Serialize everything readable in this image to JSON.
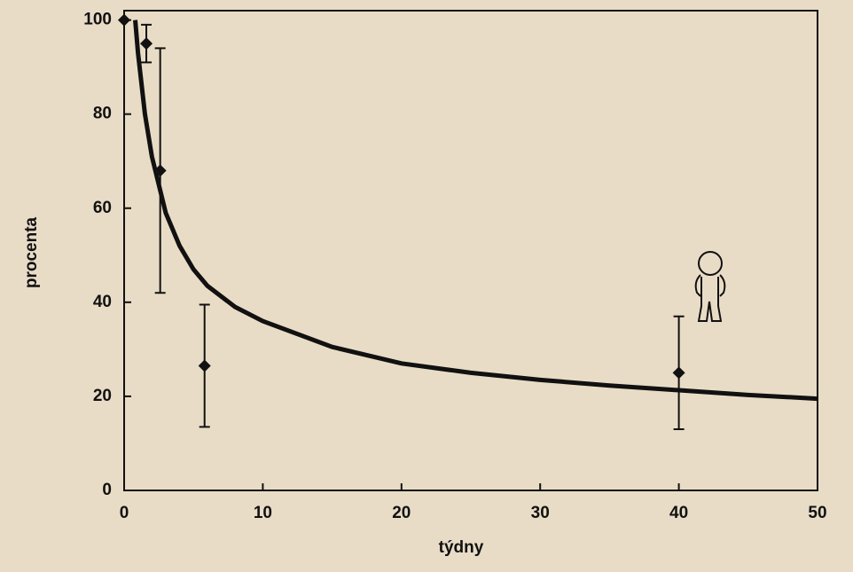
{
  "chart_data": {
    "type": "scatter",
    "x_label": "týdny",
    "y_label": "procenta",
    "xlim": [
      0,
      50
    ],
    "xticks": [
      0,
      10,
      20,
      30,
      40,
      50
    ],
    "ylim": [
      0,
      102
    ],
    "yticks": [
      0,
      20,
      40,
      60,
      80,
      100
    ],
    "color": "#111111",
    "series": [
      {
        "x": [
          0,
          1.6,
          2.6,
          5.8,
          40
        ],
        "values": [
          100,
          95,
          68,
          26.5,
          25
        ],
        "errors": [
          0,
          4,
          26,
          13,
          12
        ]
      }
    ],
    "curve": {
      "x": [
        0.8,
        1,
        1.5,
        2,
        3,
        4,
        5,
        6,
        8,
        10,
        15,
        20,
        25,
        30,
        35,
        40,
        45,
        50
      ],
      "values": [
        100,
        93,
        80,
        71,
        59,
        52,
        47,
        43.5,
        39,
        36,
        30.5,
        27,
        25,
        23.5,
        22.3,
        21.3,
        20.3,
        19.5
      ]
    }
  }
}
